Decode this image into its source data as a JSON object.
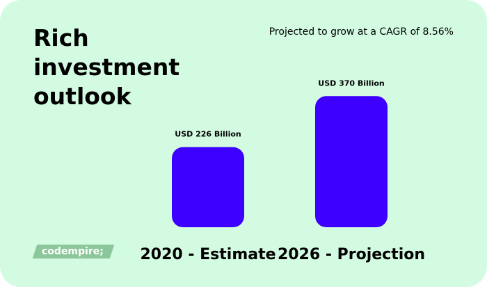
{
  "title_lines": [
    "Rich",
    "investment",
    "outlook"
  ],
  "subtitle": "Projected to grow at a CAGR of 8.56%",
  "logo_text": "codempire;",
  "colors": {
    "background": "#d3fbe2",
    "bar": "#3d00ff",
    "logo": "#8bc79a"
  },
  "chart_data": {
    "type": "bar",
    "categories": [
      "2020 - Estimate",
      "2026 - Projection"
    ],
    "values": [
      226,
      370
    ],
    "data_labels": [
      "USD 226 Billion",
      "USD 370 Billion"
    ],
    "unit": "USD Billion",
    "title": "",
    "xlabel": "",
    "ylabel": "",
    "ylim": [
      0,
      500
    ],
    "grid": false,
    "legend": "none"
  }
}
